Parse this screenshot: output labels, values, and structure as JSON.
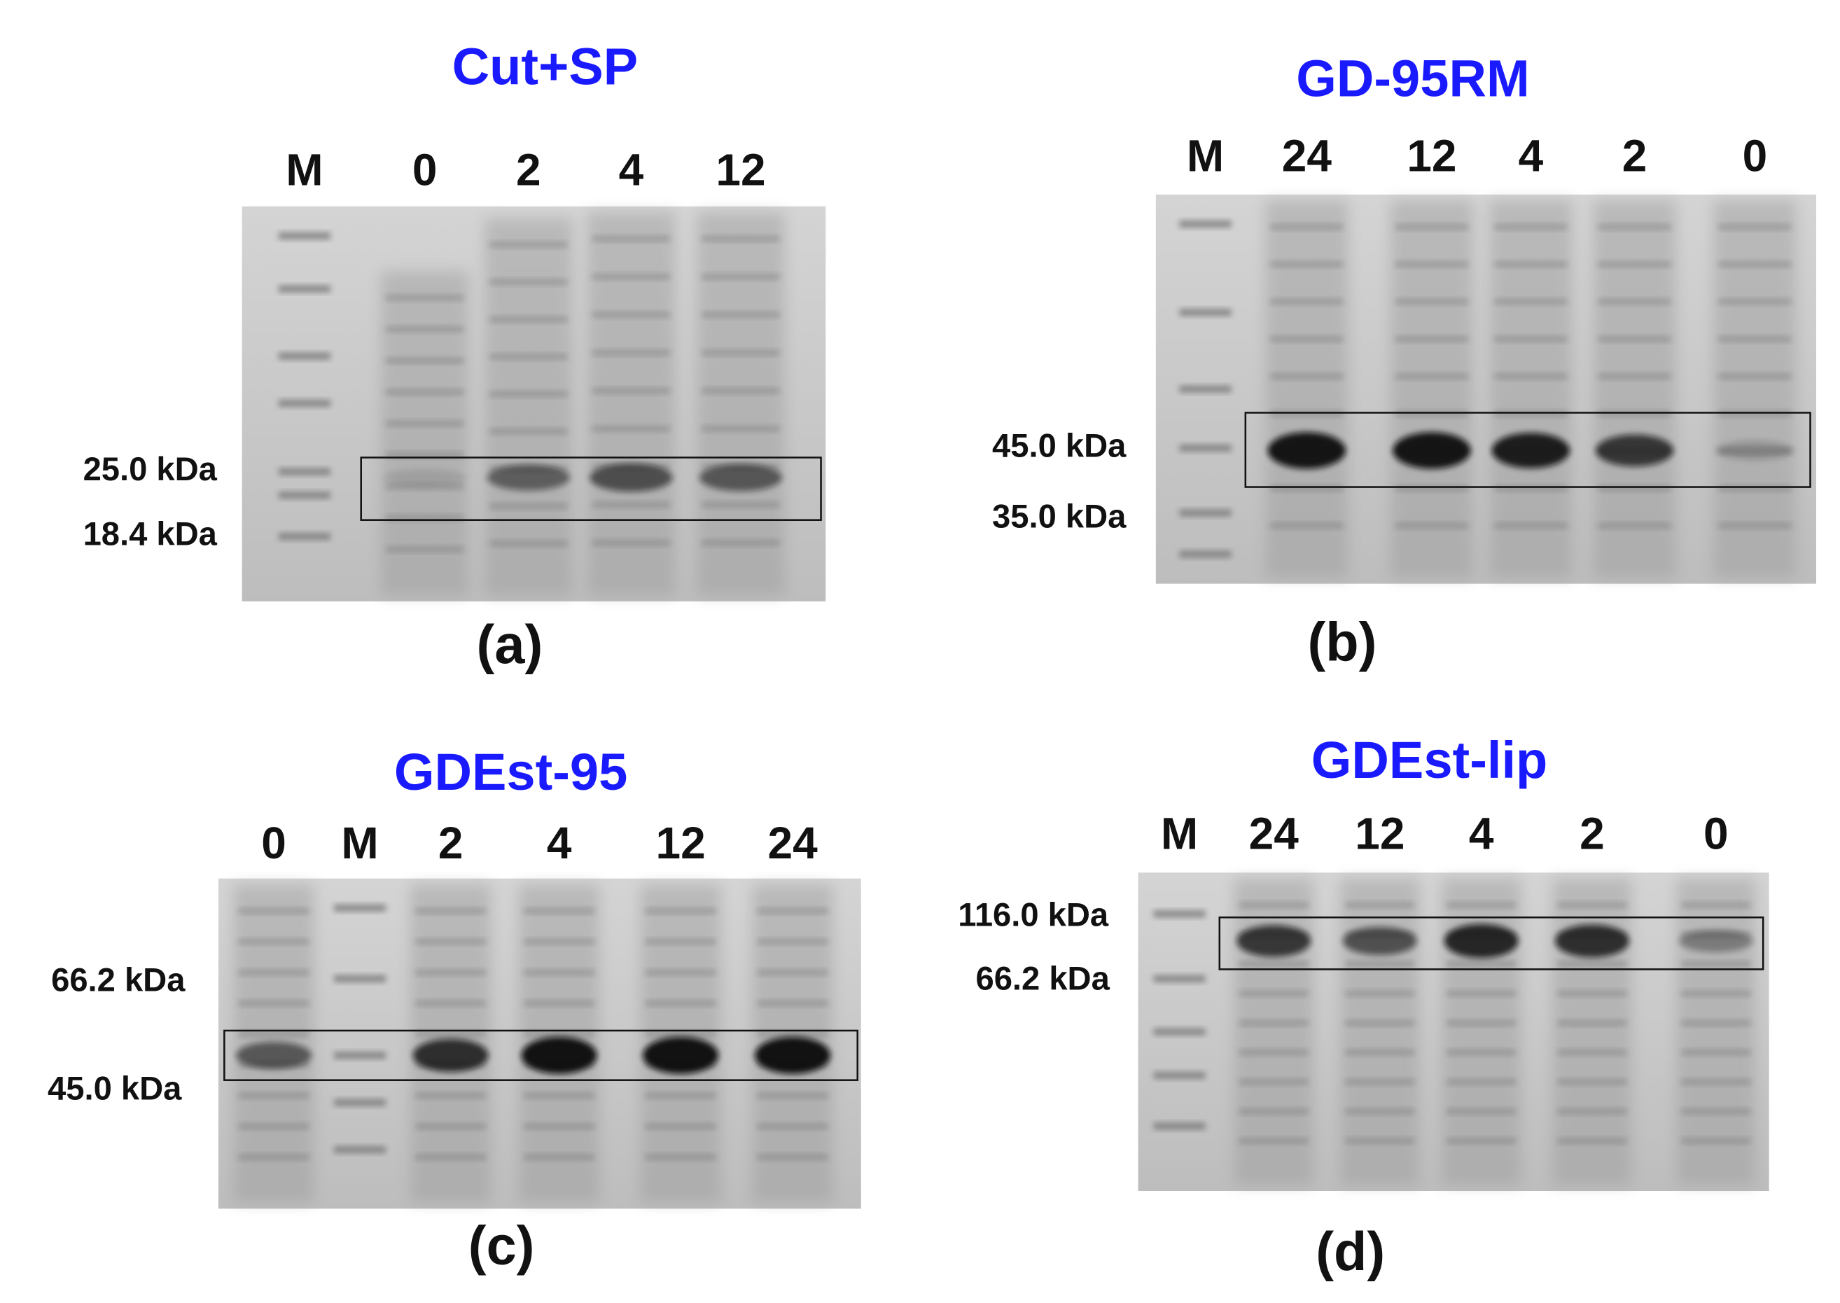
{
  "panels": [
    {
      "title": "Cut+SP",
      "lanes": [
        "M",
        "0",
        "2",
        "4",
        "12"
      ],
      "markers": [
        "25.0 kDa",
        "18.4 kDa"
      ],
      "caption": "(a)"
    },
    {
      "title": "GD-95RM",
      "lanes": [
        "M",
        "24",
        "12",
        "4",
        "2",
        "0"
      ],
      "markers": [
        "45.0 kDa",
        "35.0 kDa"
      ],
      "caption": "(b)"
    },
    {
      "title": "GDEst-95",
      "lanes": [
        "0",
        "M",
        "2",
        "4",
        "12",
        "24"
      ],
      "markers": [
        "66.2 kDa",
        "45.0 kDa"
      ],
      "caption": "(c)"
    },
    {
      "title": "GDEst-lip",
      "lanes": [
        "M",
        "24",
        "12",
        "4",
        "2",
        "0"
      ],
      "markers": [
        "116.0 kDa",
        "66.2 kDa"
      ],
      "caption": "(d)"
    }
  ]
}
